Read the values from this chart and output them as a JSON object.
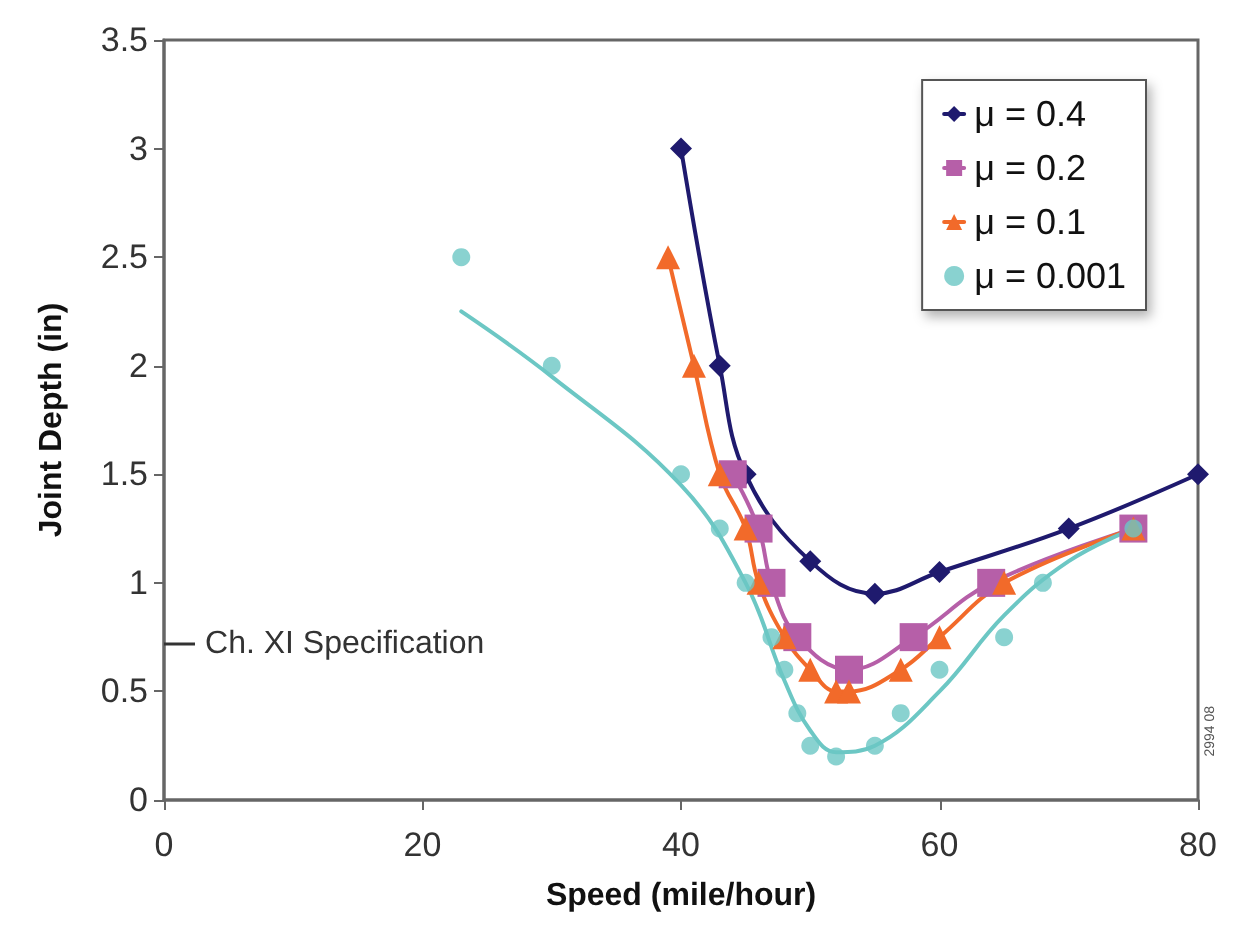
{
  "chart_data": {
    "type": "line",
    "xlabel": "Speed (mile/hour)",
    "ylabel": "Joint Depth (in)",
    "xlim": [
      0,
      80
    ],
    "xticks": [
      0,
      20,
      40,
      60,
      80
    ],
    "ylim": [
      0,
      3.5
    ],
    "yticks": [
      0,
      0.5,
      1,
      1.5,
      2,
      2.5,
      3,
      3.5
    ],
    "grid": false,
    "legend": "top right",
    "series": [
      {
        "name": "μ = 0.4",
        "color": "#1f1a6e",
        "marker": "diamond",
        "x": [
          40,
          43,
          45,
          50,
          55,
          60,
          70,
          80
        ],
        "values": [
          3.0,
          2.0,
          1.5,
          1.1,
          0.95,
          1.05,
          1.25,
          1.5
        ]
      },
      {
        "name": "μ = 0.2",
        "color": "#b65fa8",
        "marker": "square",
        "x": [
          44,
          46,
          47,
          49,
          53,
          58,
          64,
          75
        ],
        "values": [
          1.5,
          1.25,
          1.0,
          0.75,
          0.6,
          0.75,
          1.0,
          1.25
        ]
      },
      {
        "name": "μ = 0.1",
        "color": "#f26a2a",
        "marker": "triangle",
        "x": [
          39,
          41,
          43,
          45,
          46,
          48,
          50,
          52,
          53,
          57,
          60,
          65,
          75
        ],
        "values": [
          2.5,
          2.0,
          1.5,
          1.25,
          1.0,
          0.75,
          0.6,
          0.5,
          0.5,
          0.6,
          0.75,
          1.0,
          1.25
        ]
      },
      {
        "name": "μ = 0.001",
        "type": "scatter",
        "color": "#6cc7c4",
        "marker": "circle",
        "x": [
          23,
          30,
          40,
          43,
          45,
          47,
          48,
          49,
          50,
          52,
          55,
          57,
          60,
          65,
          68,
          75
        ],
        "values": [
          2.5,
          2.0,
          1.5,
          1.25,
          1.0,
          0.75,
          0.6,
          0.4,
          0.25,
          0.2,
          0.25,
          0.4,
          0.6,
          0.75,
          1.0,
          1.25
        ]
      },
      {
        "type": "line",
        "color": "#6cc7c4",
        "marker": "none",
        "x": [
          23,
          30,
          40,
          45,
          48,
          50,
          52,
          55,
          60,
          65,
          70,
          75
        ],
        "values": [
          2.25,
          1.95,
          1.45,
          1.0,
          0.55,
          0.32,
          0.22,
          0.25,
          0.5,
          0.85,
          1.1,
          1.25
        ]
      }
    ],
    "ref_lines": [
      {
        "axis": "y",
        "value": 0.72,
        "label": "Ch. XI Specification"
      }
    ],
    "annotations": [
      "2994 08"
    ]
  }
}
